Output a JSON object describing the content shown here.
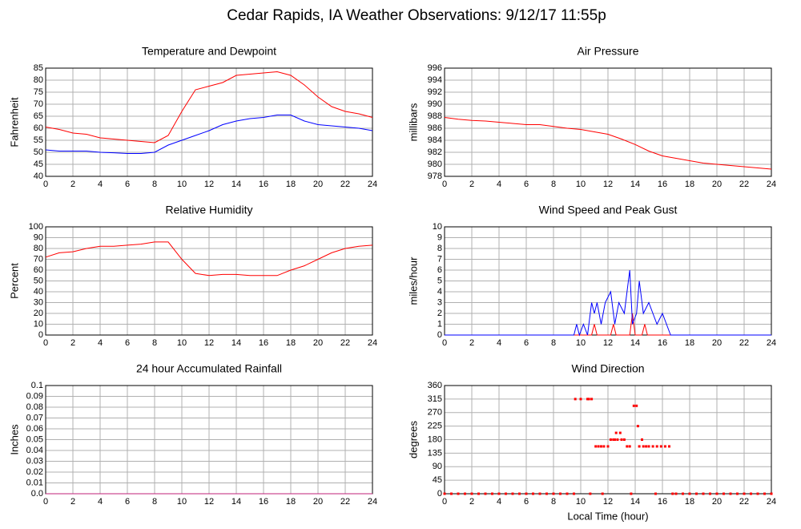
{
  "title": "Cedar Rapids, IA Weather Observations: 9/12/17 11:55p",
  "chart_data": [
    {
      "type": "line",
      "title": "Temperature and Dewpoint",
      "ylabel": "Fahrenheit",
      "xlim": [
        0,
        24
      ],
      "xticks": [
        0,
        2,
        4,
        6,
        8,
        10,
        12,
        14,
        16,
        18,
        20,
        22,
        24
      ],
      "ylim": [
        40,
        85
      ],
      "yticks": [
        40,
        45,
        50,
        55,
        60,
        65,
        70,
        75,
        80,
        85
      ],
      "grid": true,
      "x": [
        0,
        1,
        2,
        3,
        4,
        5,
        6,
        7,
        8,
        9,
        10,
        11,
        12,
        13,
        14,
        15,
        16,
        17,
        18,
        19,
        20,
        21,
        22,
        23,
        24
      ],
      "series": [
        {
          "color": "#ff0000",
          "values": [
            60.5,
            59.5,
            58,
            57.5,
            56,
            55.5,
            55,
            54.5,
            54,
            57,
            67,
            76,
            77.5,
            79,
            82,
            82.5,
            83,
            83.5,
            82,
            78,
            73,
            69,
            67,
            66,
            64.5
          ]
        },
        {
          "color": "#0000ff",
          "values": [
            51,
            50.5,
            50.5,
            50.5,
            50,
            49.8,
            49.5,
            49.5,
            50,
            53,
            55,
            57,
            59,
            61.5,
            63,
            64,
            64.5,
            65.5,
            65.5,
            63,
            61.5,
            61,
            60.5,
            60,
            59
          ]
        }
      ]
    },
    {
      "type": "line",
      "title": "Air Pressure",
      "ylabel": "millibars",
      "xlim": [
        0,
        24
      ],
      "xticks": [
        0,
        2,
        4,
        6,
        8,
        10,
        12,
        14,
        16,
        18,
        20,
        22,
        24
      ],
      "ylim": [
        978,
        996
      ],
      "yticks": [
        978,
        980,
        982,
        984,
        986,
        988,
        990,
        992,
        994,
        996
      ],
      "grid": true,
      "x": [
        0,
        1,
        2,
        3,
        4,
        5,
        6,
        7,
        8,
        9,
        10,
        11,
        12,
        13,
        14,
        15,
        16,
        17,
        18,
        19,
        20,
        21,
        22,
        23,
        24
      ],
      "series": [
        {
          "color": "#ff0000",
          "values": [
            987.8,
            987.5,
            987.3,
            987.2,
            987,
            986.8,
            986.6,
            986.6,
            986.3,
            986,
            985.8,
            985.4,
            985,
            984.2,
            983.3,
            982.2,
            981.4,
            981,
            980.6,
            980.2,
            980,
            979.8,
            979.6,
            979.4,
            979.2
          ]
        }
      ]
    },
    {
      "type": "line",
      "title": "Relative Humidity",
      "ylabel": "Percent",
      "xlim": [
        0,
        24
      ],
      "xticks": [
        0,
        2,
        4,
        6,
        8,
        10,
        12,
        14,
        16,
        18,
        20,
        22,
        24
      ],
      "ylim": [
        0,
        100
      ],
      "yticks": [
        0,
        10,
        20,
        30,
        40,
        50,
        60,
        70,
        80,
        90,
        100
      ],
      "grid": true,
      "x": [
        0,
        1,
        2,
        3,
        4,
        5,
        6,
        7,
        8,
        9,
        10,
        11,
        12,
        13,
        14,
        15,
        16,
        17,
        18,
        19,
        20,
        21,
        22,
        23,
        24
      ],
      "series": [
        {
          "color": "#ff0000",
          "values": [
            72,
            76,
            77,
            80,
            82,
            82,
            83,
            84,
            86,
            86,
            70,
            57,
            55,
            56,
            56,
            55,
            55,
            55,
            60,
            64,
            70,
            76,
            80,
            82,
            83
          ]
        }
      ]
    },
    {
      "type": "line",
      "title": "Wind Speed and Peak Gust",
      "ylabel": "miles/hour",
      "xlim": [
        0,
        24
      ],
      "xticks": [
        0,
        2,
        4,
        6,
        8,
        10,
        12,
        14,
        16,
        18,
        20,
        22,
        24
      ],
      "ylim": [
        0,
        10
      ],
      "yticks": [
        0,
        1,
        2,
        3,
        4,
        5,
        6,
        7,
        8,
        9,
        10
      ],
      "grid": true,
      "series": [
        {
          "color": "#ff0000",
          "x": [
            0,
            10.8,
            11,
            11.2,
            12.2,
            12.4,
            12.6,
            13.6,
            13.8,
            14,
            14.5,
            14.7,
            14.9,
            24
          ],
          "values": [
            0,
            0,
            1,
            0,
            0,
            1,
            0,
            0,
            2,
            0,
            0,
            1,
            0,
            0
          ]
        },
        {
          "color": "#0000ff",
          "x": [
            0,
            9.5,
            9.7,
            9.9,
            10.2,
            10.5,
            10.8,
            11,
            11.2,
            11.5,
            11.8,
            12.2,
            12.5,
            12.8,
            13.2,
            13.6,
            13.8,
            14.1,
            14.3,
            14.6,
            15,
            15.3,
            15.6,
            16,
            16.3,
            16.6,
            24
          ],
          "values": [
            0,
            0,
            1,
            0,
            1,
            0,
            3,
            2,
            3,
            1,
            3,
            4,
            1,
            3,
            2,
            6,
            1,
            2,
            5,
            2,
            3,
            2,
            1,
            2,
            1,
            0,
            0
          ]
        }
      ]
    },
    {
      "type": "line",
      "title": "24 hour Accumulated Rainfall",
      "ylabel": "Inches",
      "xlim": [
        0,
        24
      ],
      "xticks": [
        0,
        2,
        4,
        6,
        8,
        10,
        12,
        14,
        16,
        18,
        20,
        22,
        24
      ],
      "ylim": [
        0,
        0.1
      ],
      "yticks": [
        {
          "value": 0,
          "label": "0.0"
        },
        0.01,
        0.02,
        0.03,
        0.04,
        0.05,
        0.06,
        0.07,
        0.08,
        0.09,
        0.1
      ],
      "grid": true,
      "x": [
        0,
        24
      ],
      "series": [
        {
          "color": "#c0207a",
          "values": [
            0,
            0
          ]
        }
      ]
    },
    {
      "type": "scatter",
      "title": "Wind Direction",
      "ylabel": "degrees",
      "xlabel": "Local Time (hour)",
      "xlim": [
        0,
        24
      ],
      "xticks": [
        0,
        2,
        4,
        6,
        8,
        10,
        12,
        14,
        16,
        18,
        20,
        22,
        24
      ],
      "ylim": [
        0,
        360
      ],
      "yticks": [
        0,
        45,
        90,
        135,
        180,
        225,
        270,
        315,
        360
      ],
      "grid": true,
      "color": "#ff0000",
      "x": [
        0,
        0.5,
        1,
        1.5,
        2,
        2.5,
        3,
        3.5,
        4,
        4.5,
        5,
        5.5,
        6,
        6.5,
        7,
        7.5,
        8,
        8.5,
        9,
        9.5,
        9.6,
        10,
        10.5,
        10.6,
        10.8,
        10.7,
        11.1,
        11.3,
        11.5,
        11.7,
        11.6,
        12,
        12.2,
        12.4,
        12.5,
        12.6,
        12.7,
        12.9,
        13,
        13.2,
        13.4,
        13.6,
        13.7,
        13.9,
        14.1,
        14.2,
        14.3,
        14.5,
        14.6,
        14.8,
        15,
        15.3,
        15.5,
        15.6,
        15.9,
        16.2,
        16.5,
        16.75,
        17,
        17.5,
        18,
        18.5,
        19,
        19.5,
        20,
        20.5,
        21,
        21.5,
        22,
        22.5,
        23,
        23.5,
        24
      ],
      "values": [
        0,
        0,
        0,
        0,
        0,
        0,
        0,
        0,
        0,
        0,
        0,
        0,
        0,
        0,
        0,
        0,
        0,
        0,
        0,
        0,
        315,
        315,
        315,
        315,
        315,
        0,
        157.5,
        157.5,
        157.5,
        157.5,
        0,
        157.5,
        180,
        180,
        180,
        202.5,
        180,
        202.5,
        180,
        180,
        157.5,
        157.5,
        0,
        292.5,
        292.5,
        225,
        157.5,
        180,
        157.5,
        157.5,
        157.5,
        157.5,
        0,
        157.5,
        157.5,
        157.5,
        157.5,
        0,
        0,
        0,
        0,
        0,
        0,
        0,
        0,
        0,
        0,
        0,
        0,
        0,
        0,
        0,
        0
      ]
    }
  ]
}
